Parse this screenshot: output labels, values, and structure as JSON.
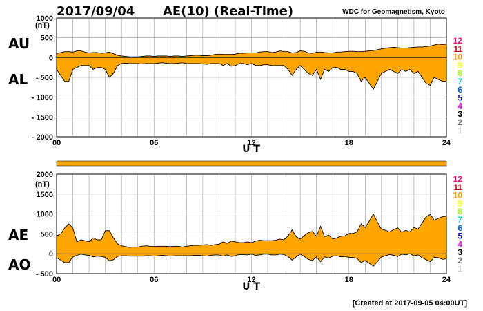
{
  "header": {
    "date": "2017/09/04",
    "title": "AE(10) (Real-Time)",
    "source": "WDC for Geomagnetism, Kyoto"
  },
  "footer": {
    "created": "[Created at 2017-09-05 04:00UT]"
  },
  "chart_data": [
    {
      "type": "area",
      "panel": "top",
      "xlabel": "U T",
      "ylabel": "(nT)",
      "xlim": [
        0,
        24
      ],
      "ylim": [
        -2000,
        1000
      ],
      "x_ticks": [
        0,
        6,
        12,
        18,
        24
      ],
      "x_tick_labels": [
        "00",
        "06",
        "12",
        "18",
        "24"
      ],
      "y_ticks": [
        1000,
        500,
        0,
        -500,
        -1000,
        -1500,
        -2000
      ],
      "y_tick_labels": [
        "1000",
        "500",
        "0",
        "- 500",
        "- 1000",
        "- 1500",
        "- 2000"
      ],
      "grid": true,
      "fill_color": "#ffa500",
      "band_labels": [
        "AU",
        "AL"
      ],
      "x": [
        0,
        0.25,
        0.5,
        0.75,
        1,
        1.25,
        1.5,
        1.75,
        2,
        2.25,
        2.5,
        2.75,
        3,
        3.25,
        3.5,
        3.75,
        4,
        4.25,
        4.5,
        4.75,
        5,
        5.25,
        5.5,
        5.75,
        6,
        6.25,
        6.5,
        6.75,
        7,
        7.25,
        7.5,
        7.75,
        8,
        8.25,
        8.5,
        8.75,
        9,
        9.25,
        9.5,
        9.75,
        10,
        10.25,
        10.5,
        10.75,
        11,
        11.25,
        11.5,
        11.75,
        12,
        12.25,
        12.5,
        12.75,
        13,
        13.25,
        13.5,
        13.75,
        14,
        14.25,
        14.5,
        14.75,
        15,
        15.25,
        15.5,
        15.75,
        16,
        16.25,
        16.5,
        16.75,
        17,
        17.25,
        17.5,
        17.75,
        18,
        18.25,
        18.5,
        18.75,
        19,
        19.25,
        19.5,
        19.75,
        20,
        20.25,
        20.5,
        20.75,
        21,
        21.25,
        21.5,
        21.75,
        22,
        22.25,
        22.5,
        22.75,
        23,
        23.25,
        23.5,
        23.75,
        24
      ],
      "series": [
        {
          "name": "AU",
          "values": [
            100,
            130,
            150,
            150,
            140,
            170,
            170,
            140,
            120,
            130,
            130,
            110,
            120,
            140,
            100,
            60,
            40,
            30,
            20,
            20,
            20,
            30,
            40,
            40,
            30,
            40,
            40,
            40,
            30,
            40,
            40,
            30,
            40,
            50,
            60,
            60,
            50,
            50,
            60,
            80,
            90,
            80,
            80,
            80,
            90,
            110,
            110,
            120,
            120,
            120,
            140,
            150,
            150,
            130,
            140,
            170,
            150,
            150,
            120,
            130,
            170,
            160,
            120,
            110,
            140,
            140,
            130,
            120,
            120,
            140,
            140,
            150,
            160,
            160,
            150,
            150,
            160,
            170,
            180,
            200,
            220,
            240,
            250,
            260,
            250,
            240,
            240,
            250,
            260,
            270,
            270,
            280,
            290,
            320,
            340,
            330,
            340
          ]
        },
        {
          "name": "AL",
          "values": [
            -300,
            -450,
            -600,
            -600,
            -300,
            -250,
            -200,
            -200,
            -200,
            -300,
            -250,
            -250,
            -300,
            -500,
            -400,
            -200,
            -150,
            -140,
            -150,
            -150,
            -150,
            -160,
            -150,
            -150,
            -150,
            -140,
            -130,
            -140,
            -150,
            -150,
            -140,
            -130,
            -150,
            -150,
            -150,
            -150,
            -160,
            -170,
            -150,
            -150,
            -150,
            -200,
            -150,
            -220,
            -200,
            -150,
            -150,
            -180,
            -150,
            -200,
            -200,
            -180,
            -180,
            -200,
            -200,
            -200,
            -200,
            -300,
            -450,
            -300,
            -200,
            -300,
            -400,
            -450,
            -300,
            -550,
            -300,
            -350,
            -250,
            -250,
            -300,
            -300,
            -350,
            -350,
            -400,
            -600,
            -500,
            -650,
            -800,
            -600,
            -400,
            -350,
            -300,
            -350,
            -400,
            -300,
            -350,
            -300,
            -400,
            -350,
            -500,
            -650,
            -700,
            -500,
            -550,
            -600,
            -600
          ]
        }
      ]
    },
    {
      "type": "area",
      "panel": "bottom",
      "xlabel": "U T",
      "ylabel": "(nT)",
      "xlim": [
        0,
        24
      ],
      "ylim": [
        -500,
        2000
      ],
      "x_ticks": [
        0,
        6,
        12,
        18,
        24
      ],
      "x_tick_labels": [
        "00",
        "06",
        "12",
        "18",
        "24"
      ],
      "y_ticks": [
        2000,
        1500,
        1000,
        500,
        0,
        -500
      ],
      "y_tick_labels": [
        "2000",
        "1500",
        "1000",
        "500",
        "0",
        "- 500"
      ],
      "grid": true,
      "fill_color": "#ffa500",
      "band_labels": [
        "AE",
        "AO"
      ],
      "x": [
        0,
        0.25,
        0.5,
        0.75,
        1,
        1.25,
        1.5,
        1.75,
        2,
        2.25,
        2.5,
        2.75,
        3,
        3.25,
        3.5,
        3.75,
        4,
        4.25,
        4.5,
        4.75,
        5,
        5.25,
        5.5,
        5.75,
        6,
        6.25,
        6.5,
        6.75,
        7,
        7.25,
        7.5,
        7.75,
        8,
        8.25,
        8.5,
        8.75,
        9,
        9.25,
        9.5,
        9.75,
        10,
        10.25,
        10.5,
        10.75,
        11,
        11.25,
        11.5,
        11.75,
        12,
        12.25,
        12.5,
        12.75,
        13,
        13.25,
        13.5,
        13.75,
        14,
        14.25,
        14.5,
        14.75,
        15,
        15.25,
        15.5,
        15.75,
        16,
        16.25,
        16.5,
        16.75,
        17,
        17.25,
        17.5,
        17.75,
        18,
        18.25,
        18.5,
        18.75,
        19,
        19.25,
        19.5,
        19.75,
        20,
        20.25,
        20.5,
        20.75,
        21,
        21.25,
        21.5,
        21.75,
        22,
        22.25,
        22.5,
        22.75,
        23,
        23.25,
        23.5,
        23.75,
        24
      ],
      "series": [
        {
          "name": "AE",
          "values": [
            450,
            500,
            650,
            750,
            650,
            300,
            350,
            330,
            300,
            400,
            350,
            350,
            580,
            580,
            400,
            250,
            200,
            180,
            160,
            170,
            170,
            190,
            200,
            190,
            180,
            190,
            190,
            190,
            180,
            190,
            190,
            170,
            190,
            200,
            210,
            210,
            220,
            230,
            210,
            230,
            240,
            300,
            260,
            320,
            300,
            280,
            280,
            300,
            280,
            320,
            340,
            330,
            330,
            330,
            340,
            370,
            350,
            450,
            600,
            430,
            370,
            460,
            530,
            560,
            440,
            690,
            430,
            470,
            370,
            400,
            440,
            450,
            510,
            510,
            550,
            750,
            660,
            820,
            1000,
            800,
            620,
            590,
            550,
            610,
            650,
            540,
            590,
            550,
            660,
            620,
            770,
            930,
            990,
            840,
            890,
            930,
            940
          ]
        },
        {
          "name": "AO",
          "values": [
            -100,
            -160,
            -220,
            -220,
            -80,
            -40,
            -10,
            -30,
            -40,
            -80,
            -60,
            -70,
            -90,
            -180,
            -150,
            -70,
            -50,
            -50,
            -60,
            -60,
            -60,
            -60,
            -50,
            -50,
            -60,
            -50,
            -40,
            -50,
            -60,
            -50,
            -50,
            -50,
            -50,
            -50,
            -40,
            -40,
            -50,
            -60,
            -40,
            -30,
            -30,
            -60,
            -30,
            -70,
            -50,
            -20,
            -20,
            -30,
            -10,
            -40,
            -30,
            -10,
            -10,
            -30,
            -30,
            -10,
            -20,
            -70,
            -160,
            -80,
            -10,
            -70,
            -140,
            -170,
            -80,
            -200,
            -80,
            -110,
            -60,
            -50,
            -80,
            -70,
            -90,
            -90,
            -120,
            -220,
            -170,
            -240,
            -310,
            -200,
            -80,
            -50,
            -20,
            -40,
            -70,
            -10,
            -30,
            0,
            -50,
            -30,
            -100,
            -150,
            -200,
            -90,
            -100,
            -140,
            -130
          ]
        }
      ]
    }
  ],
  "band": {
    "fill_color": "#ffa500"
  },
  "legend": {
    "items": [
      {
        "label": "12",
        "color": "#ff0080"
      },
      {
        "label": "11",
        "color": "#e0001a"
      },
      {
        "label": "10",
        "color": "#ff9900"
      },
      {
        "label": "9",
        "color": "#ffff00"
      },
      {
        "label": "8",
        "color": "#99ff00"
      },
      {
        "label": "7",
        "color": "#00e0e0"
      },
      {
        "label": "6",
        "color": "#0066ff"
      },
      {
        "label": "5",
        "color": "#0000cc"
      },
      {
        "label": "4",
        "color": "#ff00ff"
      },
      {
        "label": "3",
        "color": "#000000"
      },
      {
        "label": "2",
        "color": "#666666"
      },
      {
        "label": "1",
        "color": "#cccccc"
      }
    ]
  }
}
